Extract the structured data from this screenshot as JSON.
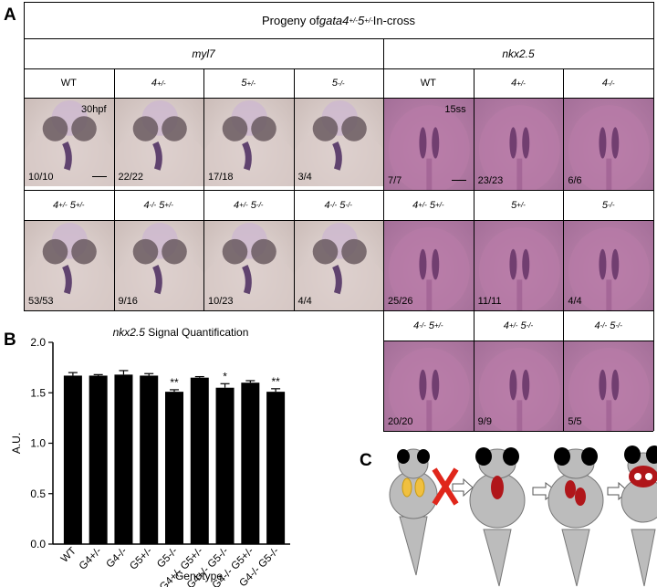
{
  "panelA": {
    "letter": "A",
    "title_pre": "Progeny of ",
    "title_gene": "gata4",
    "title_sup4": "+/-",
    "title_sp": " 5",
    "title_sup5": "+/-",
    "title_post": " In-cross",
    "gene_myl7": "myl7",
    "gene_nkx": "nkx2.5",
    "myl7_row1": [
      "WT",
      "4+/-",
      "5+/-",
      "5-/-"
    ],
    "myl7_row1_counts": [
      "10/10",
      "22/22",
      "17/18",
      "3/4"
    ],
    "myl7_row2": [
      "4+/- 5+/-",
      "4-/- 5+/-",
      "4+/- 5-/-",
      "4-/- 5-/-"
    ],
    "myl7_row2_counts": [
      "53/53",
      "9/16",
      "10/23",
      "4/4"
    ],
    "nkx_row1": [
      "WT",
      "4+/-",
      "4-/-"
    ],
    "nkx_row1_counts": [
      "7/7",
      "23/23",
      "6/6"
    ],
    "nkx_row2": [
      "4+/- 5+/-",
      "5+/-",
      "5-/-"
    ],
    "nkx_row2_counts": [
      "25/26",
      "11/11",
      "4/4"
    ],
    "nkx_row3": [
      "4-/- 5+/-",
      "4+/- 5-/-",
      "4-/- 5-/-"
    ],
    "nkx_row3_counts": [
      "20/20",
      "9/9",
      "5/5"
    ],
    "stage_myl7": "30hpf",
    "stage_nkx": "15ss"
  },
  "panelB": {
    "letter": "B",
    "title_gene": "nkx2.5",
    "title_rest": " Signal Quantification"
  },
  "panelC": {
    "letter": "C"
  },
  "chart_data": {
    "type": "bar",
    "title": "nkx2.5 Signal Quantification",
    "xlabel": "Genotype",
    "ylabel": "A.U.",
    "ylim": [
      0.0,
      2.0
    ],
    "yticks": [
      "0.0",
      "0.5",
      "1.0",
      "1.5",
      "2.0"
    ],
    "categories": [
      "WT",
      "G4+/-",
      "G4-/-",
      "G5+/-",
      "G5-/-",
      "G4+/- G5+/-",
      "G4+/- G5-/-",
      "G4-/- G5+/-",
      "G4-/- G5-/-"
    ],
    "values": [
      1.67,
      1.67,
      1.68,
      1.67,
      1.51,
      1.65,
      1.55,
      1.6,
      1.51
    ],
    "errors": [
      0.03,
      0.01,
      0.04,
      0.02,
      0.02,
      0.01,
      0.04,
      0.02,
      0.03
    ],
    "significance": [
      "",
      "",
      "",
      "",
      "**",
      "",
      "*",
      "",
      "**"
    ],
    "bar_color": "#000000"
  }
}
